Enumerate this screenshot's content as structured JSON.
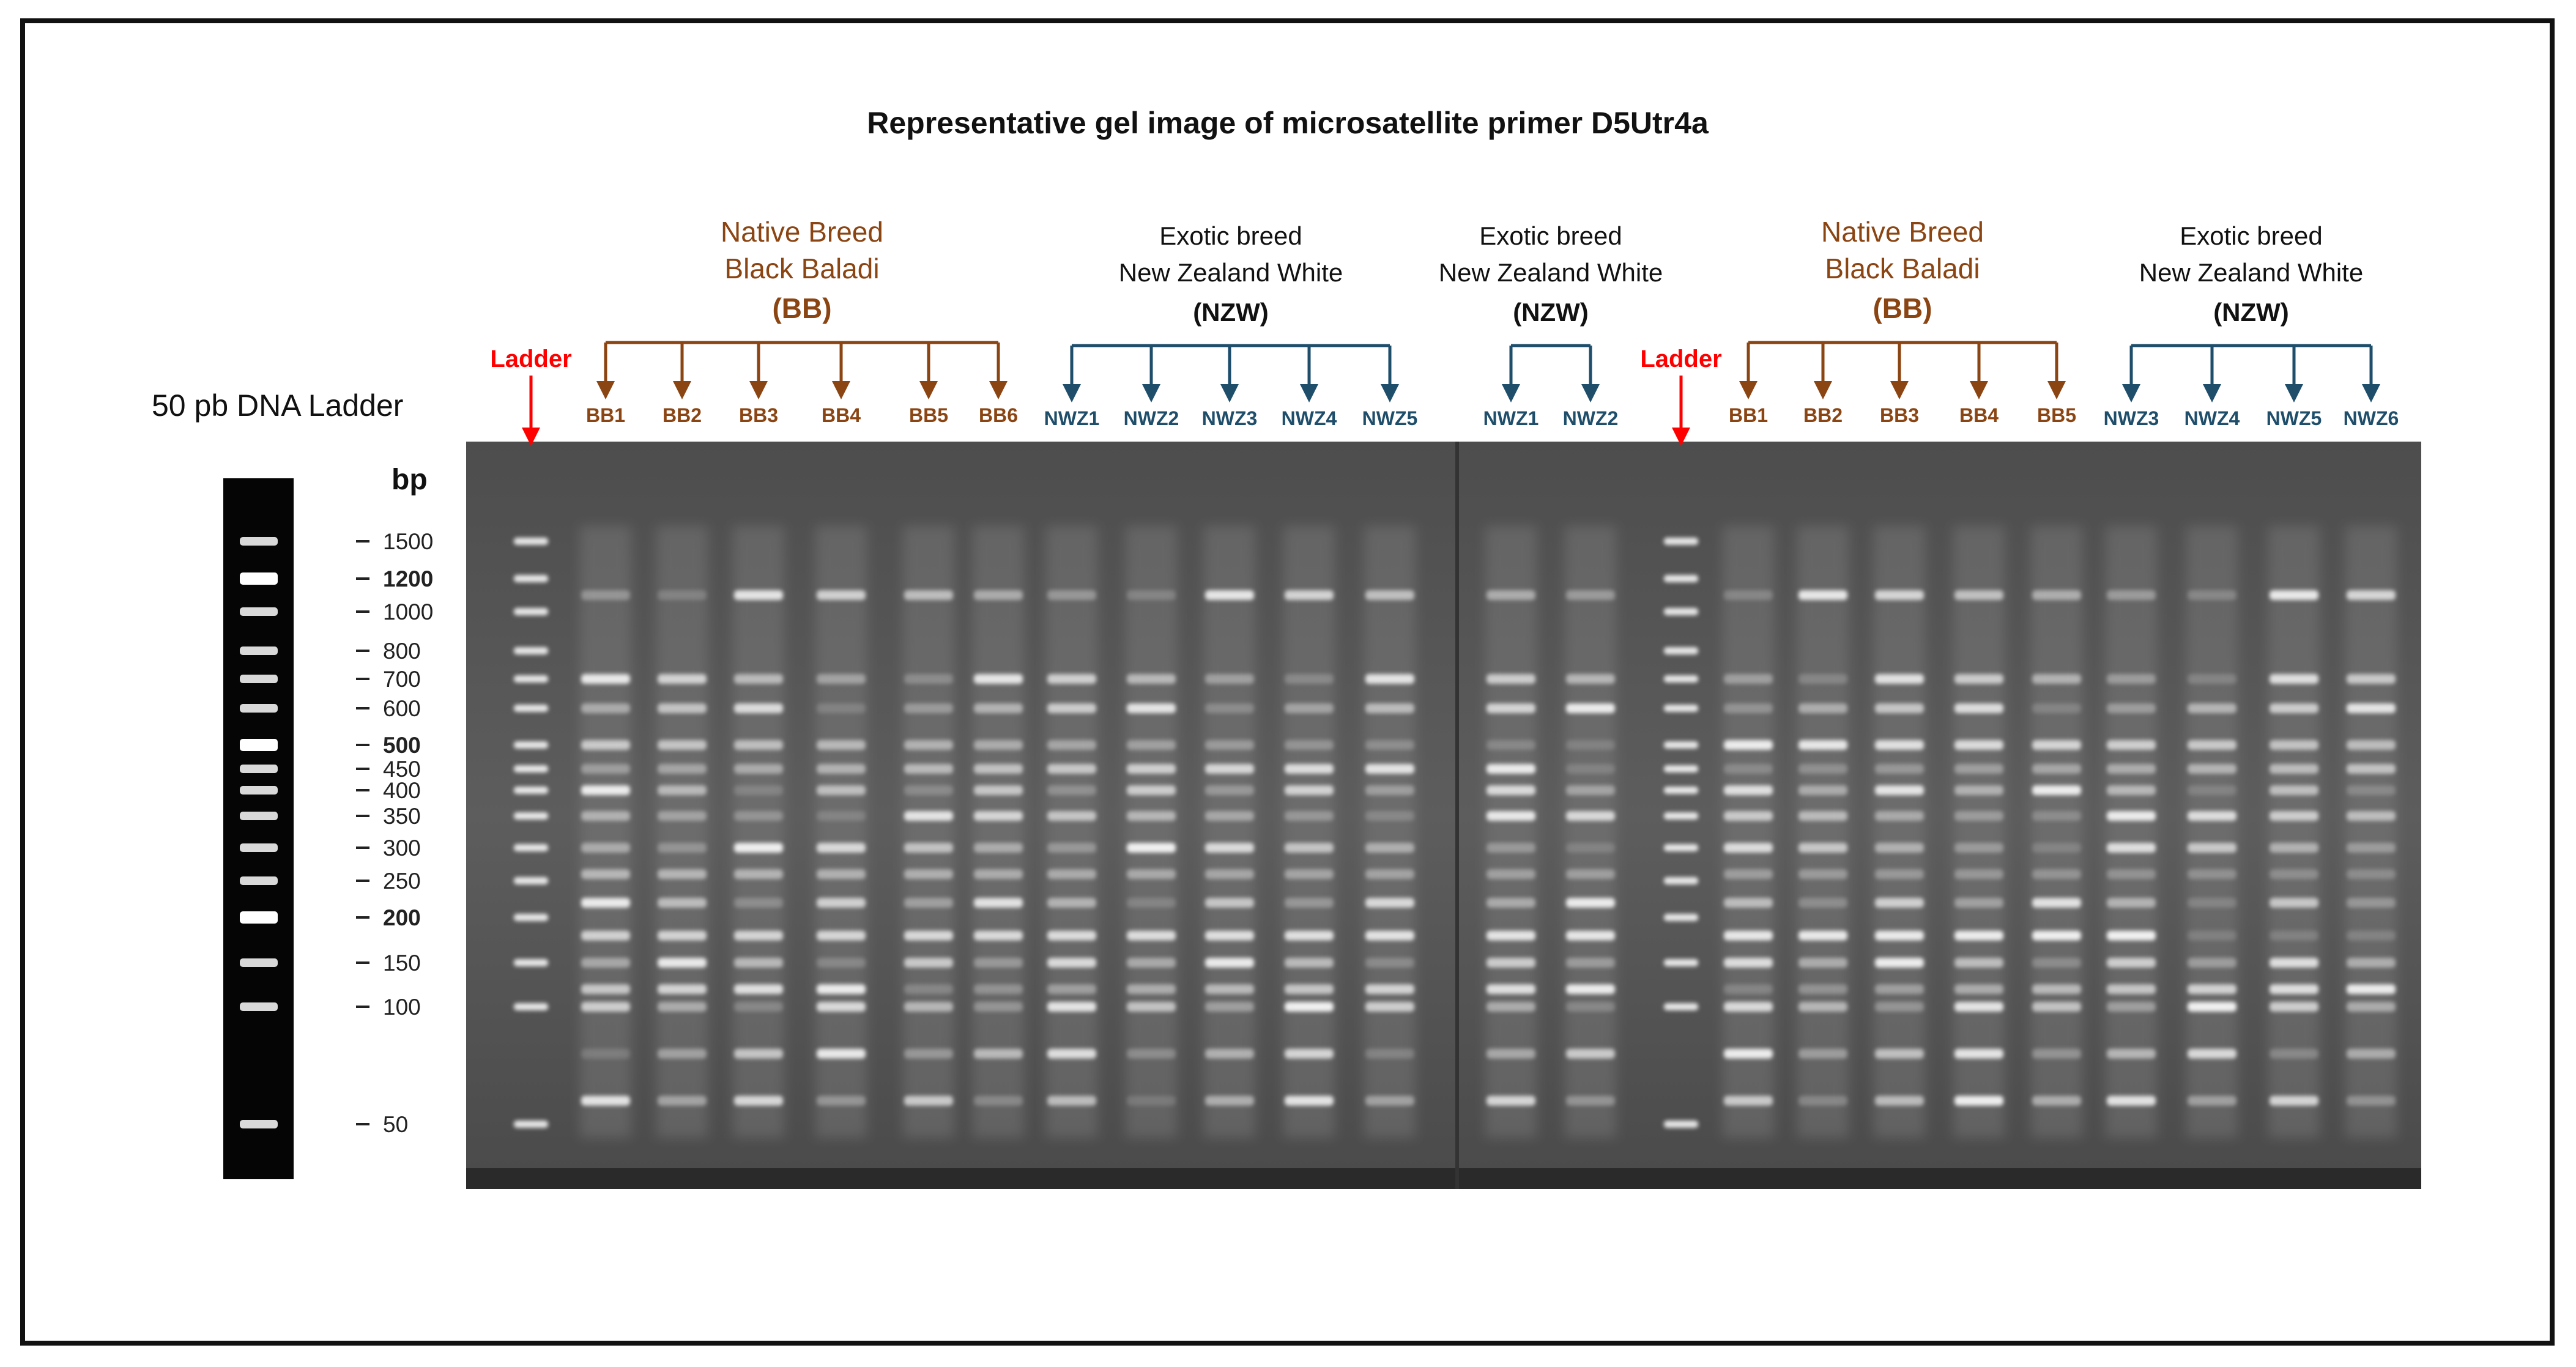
{
  "title": "Representative gel image of microsatellite primer D5Utr4a",
  "colors": {
    "native": "#8B4513",
    "exotic": "#1F4E6B",
    "ladder": "#FF0000",
    "gel_bg": "#5a5a5a",
    "band": "#ffffff"
  },
  "ladder_panel": {
    "title": "50 pb DNA Ladder",
    "unit": "bp",
    "markers": [
      {
        "label": "1500",
        "bp": 1500,
        "bold": false
      },
      {
        "label": "1200",
        "bp": 1200,
        "bold": true
      },
      {
        "label": "1000",
        "bp": 1000,
        "bold": false
      },
      {
        "label": "800",
        "bp": 800,
        "bold": false
      },
      {
        "label": "700",
        "bp": 700,
        "bold": false
      },
      {
        "label": "600",
        "bp": 600,
        "bold": false
      },
      {
        "label": "500",
        "bp": 500,
        "bold": true
      },
      {
        "label": "450",
        "bp": 450,
        "bold": false
      },
      {
        "label": "400",
        "bp": 400,
        "bold": false
      },
      {
        "label": "350",
        "bp": 350,
        "bold": false
      },
      {
        "label": "300",
        "bp": 300,
        "bold": false
      },
      {
        "label": "250",
        "bp": 250,
        "bold": false
      },
      {
        "label": "200",
        "bp": 200,
        "bold": true
      },
      {
        "label": "150",
        "bp": 150,
        "bold": false
      },
      {
        "label": "100",
        "bp": 100,
        "bold": false
      },
      {
        "label": "50",
        "bp": 50,
        "bold": false
      }
    ]
  },
  "groups": [
    {
      "breed": "Native Breed",
      "name": "Black Baladi",
      "abbr": "(BB)",
      "type": "native",
      "lanes": [
        "BB1",
        "BB2",
        "BB3",
        "BB4",
        "BB5",
        "BB6"
      ]
    },
    {
      "breed": "Exotic breed",
      "name": "New Zealand White",
      "abbr": "(NZW)",
      "type": "exotic",
      "lanes": [
        "NWZ1",
        "NWZ2",
        "NWZ3",
        "NWZ4",
        "NWZ5"
      ]
    },
    {
      "breed": "Exotic breed",
      "name": "New Zealand White",
      "abbr": "(NZW)",
      "type": "exotic",
      "lanes": [
        "NWZ1",
        "NWZ2"
      ]
    },
    {
      "breed": "Native Breed",
      "name": "Black Baladi",
      "abbr": "(BB)",
      "type": "native",
      "lanes": [
        "BB1",
        "BB2",
        "BB3",
        "BB4",
        "BB5"
      ]
    },
    {
      "breed": "Exotic breed",
      "name": "New Zealand White",
      "abbr": "(NZW)",
      "type": "exotic",
      "lanes": [
        "NWZ3",
        "NWZ4",
        "NWZ5",
        "NWZ6"
      ]
    }
  ],
  "ladders": [
    {
      "label": "Ladder"
    },
    {
      "label": "Ladder"
    }
  ]
}
